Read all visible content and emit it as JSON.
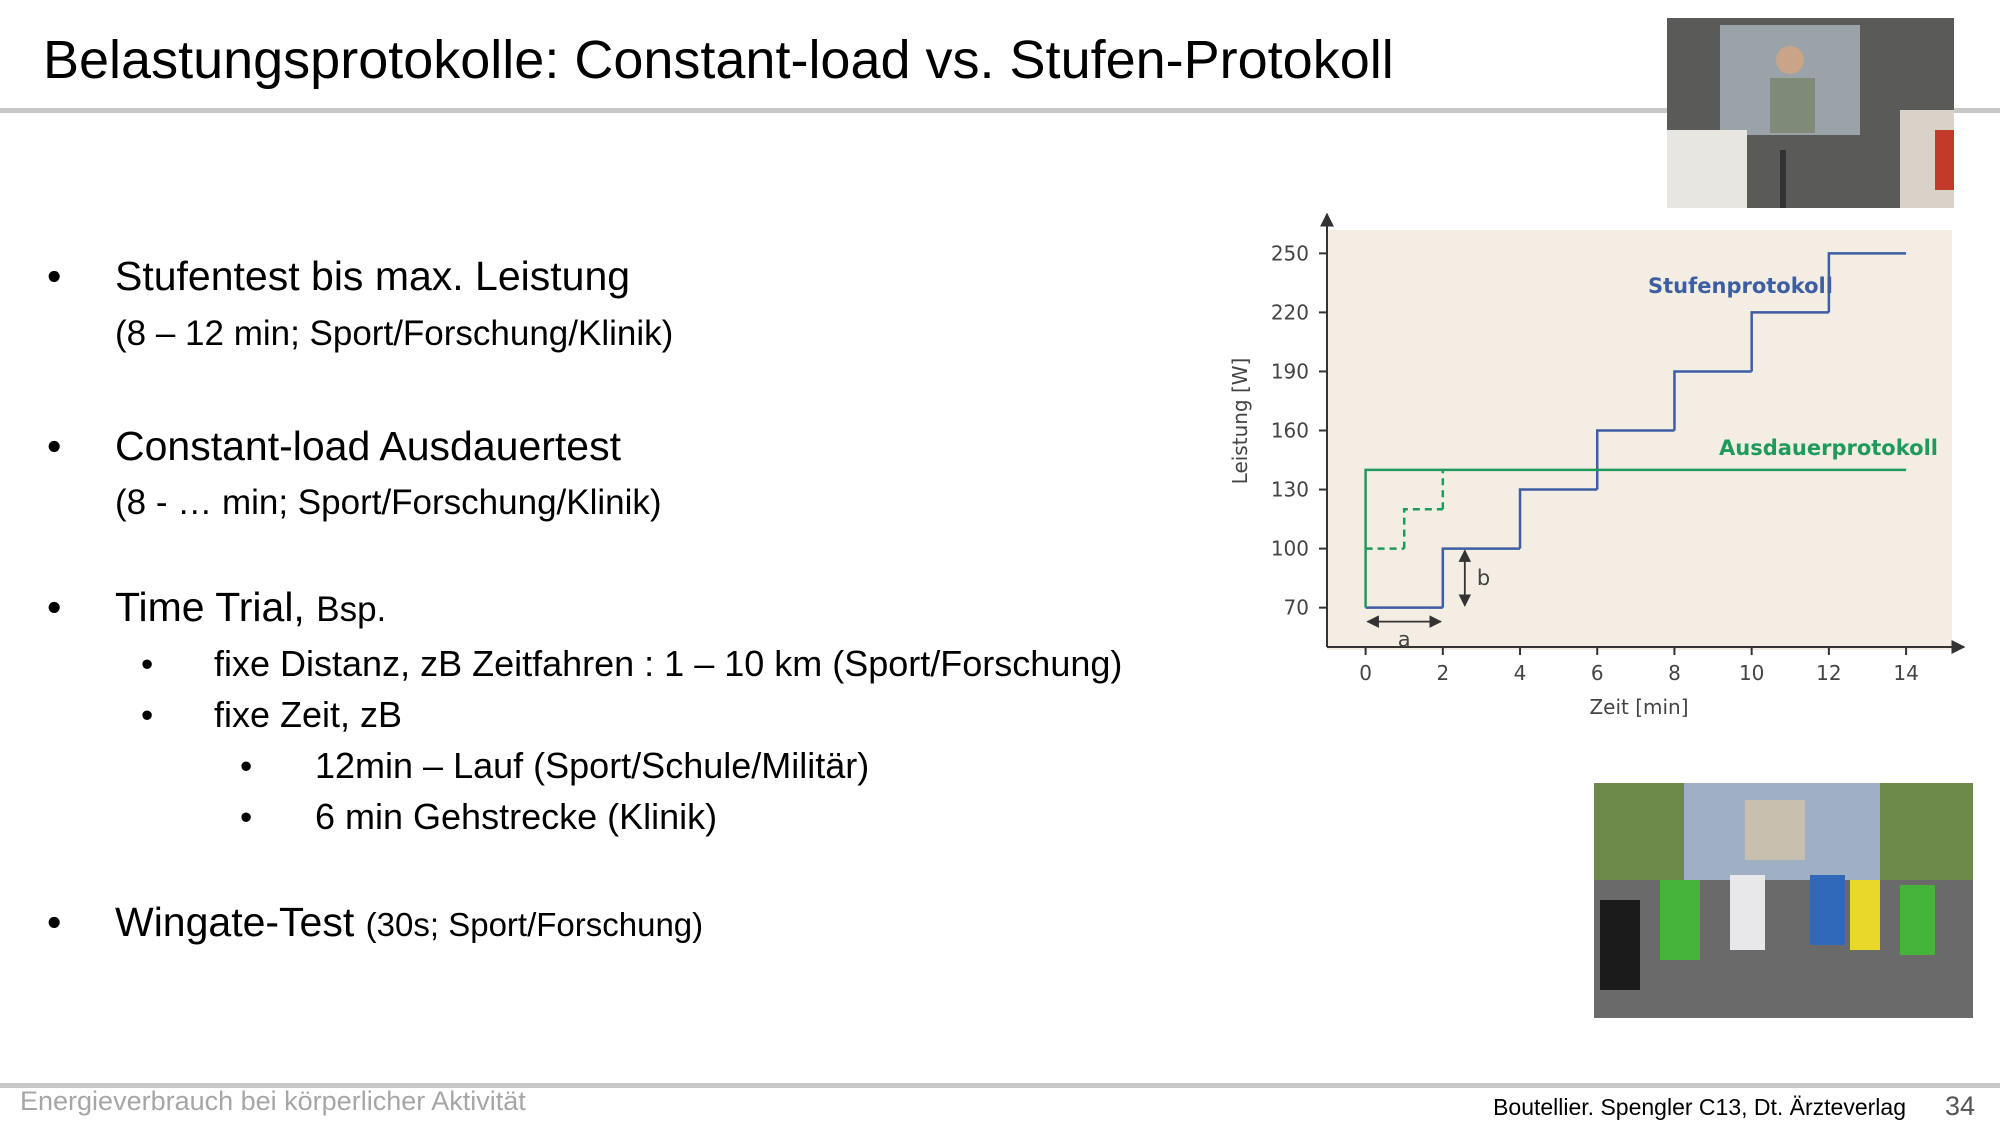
{
  "header": {
    "title": "Belastungsprotokolle:  Constant-load vs. Stufen-Protokoll"
  },
  "bullets": [
    {
      "text": "Stufentest bis max. Leistung",
      "sub": "(8 – 12 min;  Sport/Forschung/Klinik)"
    },
    {
      "text": "Constant-load Ausdauertest",
      "sub": "(8 -  … min; Sport/Forschung/Klinik)"
    },
    {
      "text": "Time Trial,",
      "note": "Bsp.",
      "items": [
        {
          "text": "fixe Distanz, zB Zeitfahren :  1 – 10 km (Sport/Forschung)"
        },
        {
          "text": "fixe Zeit, zB",
          "items": [
            "12min – Lauf  (Sport/Schule/Militär)",
            "6 min Gehstrecke (Klinik)"
          ]
        }
      ]
    },
    {
      "text": "Wingate-Test",
      "note": "(30s;  Sport/Forschung)"
    }
  ],
  "chart_data": {
    "type": "step",
    "xlabel": "Zeit [min]",
    "ylabel": "Leistung [W]",
    "xlim": [
      -1,
      15.5
    ],
    "ylim": [
      50,
      270
    ],
    "xticks": [
      0,
      2,
      4,
      6,
      8,
      10,
      12,
      14
    ],
    "yticks": [
      70,
      100,
      130,
      160,
      190,
      220,
      250
    ],
    "series": [
      {
        "name": "Stufenprotokoll",
        "color": "#3d5ea3",
        "x": [
          0,
          2,
          4,
          6,
          8,
          10,
          12,
          14
        ],
        "values": [
          70,
          100,
          130,
          160,
          190,
          220,
          250,
          250
        ]
      },
      {
        "name": "Ausdauerprotokoll",
        "color": "#1f9a5c",
        "x": [
          0,
          0,
          14
        ],
        "values": [
          70,
          140,
          140
        ]
      },
      {
        "color": "#1f9a5c",
        "dashed": true,
        "x": [
          0,
          1,
          2
        ],
        "values": [
          100,
          120,
          140
        ]
      }
    ],
    "annotations": [
      "a",
      "b"
    ]
  },
  "footer": {
    "left": "Energieverbrauch bei körperlicher Aktivität",
    "source": "Boutellier. Spengler C13, Dt. Ärzteverlag",
    "page": "34"
  }
}
